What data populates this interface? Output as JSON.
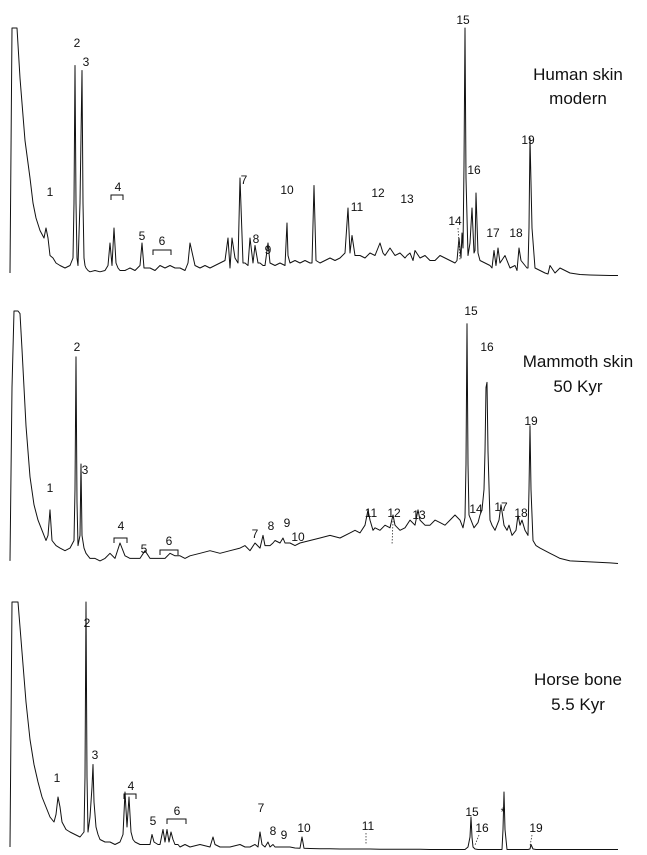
{
  "chart_data": [
    {
      "type": "line",
      "title_lines": [
        "Human skin",
        "modern"
      ],
      "peak_labels": [
        "1",
        "2",
        "3",
        "4",
        "5",
        "6",
        "7",
        "8",
        "9",
        "10",
        "11",
        "12",
        "13",
        "14",
        "15",
        "16",
        "17",
        "18",
        "19"
      ],
      "series": [
        {
          "x": [
            10,
            12,
            14,
            17,
            20,
            25,
            30,
            33,
            36,
            40,
            44,
            46,
            48,
            50,
            53,
            56,
            60,
            65,
            70,
            73,
            74,
            75,
            76,
            77,
            78,
            80,
            82,
            83,
            84,
            85,
            86,
            88,
            90,
            95,
            100,
            105,
            108,
            110,
            112,
            114,
            116,
            118,
            120,
            125,
            130,
            135,
            140,
            142,
            144,
            150,
            155,
            160,
            165,
            170,
            175,
            180,
            185,
            188,
            190,
            195,
            200,
            205,
            210,
            215,
            220,
            225,
            228,
            230,
            232,
            235,
            238,
            240,
            243,
            245,
            248,
            250,
            253,
            255,
            258,
            260,
            263,
            265,
            268,
            270,
            275,
            280,
            285,
            287,
            288,
            290,
            295,
            300,
            305,
            310,
            312,
            314,
            316,
            320,
            325,
            330,
            335,
            340,
            345,
            348,
            350,
            352,
            355,
            360,
            365,
            370,
            375,
            378,
            380,
            383,
            385,
            390,
            395,
            400,
            405,
            407,
            410,
            413,
            415,
            420,
            425,
            430,
            435,
            440,
            445,
            450,
            455,
            457,
            459,
            461,
            462,
            463,
            464,
            465,
            466,
            468,
            470,
            472,
            474,
            475,
            476,
            478,
            480,
            485,
            490,
            492,
            494,
            496,
            498,
            500,
            505,
            510,
            515,
            517,
            519,
            521,
            525,
            527,
            528,
            529,
            530,
            532,
            535,
            540,
            545,
            548,
            550,
            555,
            560,
            570,
            580,
            590,
            600,
            610,
            615,
            618
          ],
          "y": [
            2.0,
            100.0,
            100.0,
            100.0,
            80.0,
            55.0,
            40.0,
            30.0,
            24.0,
            19.0,
            16.0,
            20.0,
            16.0,
            9.0,
            8.0,
            6.0,
            5.0,
            4.0,
            5.0,
            8.0,
            30.0,
            85.0,
            30.0,
            8.0,
            5.0,
            30.0,
            83.0,
            30.0,
            8.0,
            5.0,
            4.0,
            3.0,
            2.5,
            3.0,
            2.5,
            3.0,
            5.0,
            14.0,
            5.0,
            20.0,
            6.0,
            4.0,
            3.0,
            3.0,
            4.0,
            3.0,
            5.0,
            14.0,
            4.0,
            4.0,
            3.0,
            5.0,
            4.0,
            5.0,
            4.0,
            4.0,
            3.0,
            6.0,
            14.0,
            5.0,
            4.0,
            5.0,
            4.0,
            5.0,
            6.0,
            7.0,
            16.0,
            4.0,
            16.0,
            8.0,
            6.0,
            40.0,
            6.0,
            6.0,
            5.0,
            16.0,
            6.0,
            13.0,
            6.0,
            6.0,
            5.0,
            5.0,
            14.0,
            6.0,
            5.0,
            6.0,
            5.0,
            22.0,
            9.0,
            6.0,
            7.0,
            6.0,
            7.0,
            6.0,
            6.0,
            37.0,
            7.0,
            6.0,
            7.0,
            8.0,
            7.0,
            8.0,
            10.0,
            28.0,
            10.0,
            17.0,
            9.0,
            9.0,
            8.0,
            10.0,
            9.0,
            12.0,
            14.0,
            10.0,
            9.0,
            12.0,
            9.0,
            10.0,
            8.0,
            9.0,
            10.0,
            7.0,
            11.0,
            8.0,
            9.0,
            7.0,
            7.0,
            9.0,
            8.0,
            7.0,
            6.0,
            7.0,
            16.0,
            8.0,
            18.0,
            12.0,
            45.0,
            100.0,
            40.0,
            9.0,
            14.0,
            28.0,
            10.0,
            11.0,
            34.0,
            10.0,
            7.0,
            6.0,
            5.0,
            4.0,
            11.0,
            5.0,
            12.0,
            6.0,
            9.0,
            4.0,
            5.0,
            3.0,
            12.0,
            7.0,
            5.0,
            4.0,
            4.0,
            20.0,
            56.0,
            20.0,
            4.0,
            3.0,
            2.0,
            1.6,
            5.0,
            2.0,
            4.0,
            2.0,
            1.4,
            1.2,
            1.1,
            1.0,
            1.0,
            1.0
          ]
        }
      ]
    },
    {
      "type": "line",
      "title_lines": [
        "Mammoth skin",
        "50 Kyr"
      ],
      "peak_labels": [
        "1",
        "2",
        "3",
        "4",
        "5",
        "6",
        "7",
        "8",
        "9",
        "10",
        "11",
        "12",
        "13",
        "14",
        "15",
        "16",
        "17",
        "18",
        "19"
      ],
      "series": [
        {
          "x": [
            10,
            12,
            14,
            16,
            18,
            20,
            22,
            24,
            26,
            30,
            34,
            38,
            42,
            46,
            48,
            50,
            52,
            56,
            60,
            65,
            70,
            74,
            75,
            76,
            77,
            78,
            80,
            81,
            82,
            84,
            86,
            90,
            95,
            100,
            105,
            110,
            115,
            120,
            125,
            130,
            135,
            140,
            145,
            150,
            155,
            160,
            165,
            170,
            175,
            180,
            185,
            190,
            200,
            210,
            220,
            230,
            240,
            245,
            250,
            255,
            260,
            263,
            265,
            270,
            273,
            275,
            280,
            283,
            285,
            290,
            295,
            300,
            310,
            320,
            330,
            340,
            350,
            355,
            360,
            365,
            368,
            370,
            373,
            375,
            380,
            385,
            390,
            393,
            395,
            400,
            405,
            410,
            415,
            418,
            420,
            425,
            430,
            435,
            440,
            445,
            450,
            455,
            460,
            463,
            465,
            466,
            467,
            468,
            469,
            471,
            474,
            476,
            478,
            480,
            482,
            484,
            485,
            486,
            487,
            488,
            490,
            492,
            495,
            497,
            499,
            501,
            504,
            507,
            509,
            512,
            516,
            518,
            520,
            522,
            525,
            528,
            529,
            530,
            531,
            533,
            536,
            540,
            545,
            550,
            555,
            560,
            570,
            580,
            590,
            600,
            610,
            618
          ],
          "y": [
            2.0,
            70.0,
            100.0,
            100.0,
            100.0,
            99.0,
            85.0,
            70.0,
            55.0,
            35.0,
            24.0,
            18.0,
            14.0,
            10.0,
            12.0,
            22.0,
            10.0,
            8.0,
            7.0,
            6.0,
            7.0,
            10.0,
            30.0,
            82.0,
            25.0,
            8.0,
            12.0,
            40.0,
            12.0,
            7.0,
            5.0,
            3.0,
            3.0,
            2.0,
            3.0,
            5.0,
            3.0,
            9.0,
            4.0,
            3.0,
            3.0,
            3.0,
            6.0,
            3.0,
            3.0,
            3.0,
            3.0,
            5.0,
            4.0,
            4.0,
            3.0,
            4.0,
            5.0,
            6.0,
            5.0,
            6.0,
            7.0,
            8.0,
            6.0,
            9.0,
            7.0,
            12.0,
            8.0,
            8.0,
            9.0,
            10.0,
            9.0,
            11.0,
            9.0,
            9.0,
            8.0,
            9.0,
            10.0,
            11.0,
            12.0,
            11.0,
            13.0,
            14.0,
            13.0,
            16.0,
            22.0,
            18.0,
            14.0,
            15.0,
            14.0,
            16.0,
            15.0,
            20.0,
            16.0,
            14.0,
            15.0,
            18.0,
            16.0,
            22.0,
            18.0,
            16.0,
            16.0,
            18.0,
            17.0,
            16.0,
            18.0,
            20.0,
            18.0,
            15.0,
            19.0,
            40.0,
            95.0,
            40.0,
            20.0,
            18.0,
            15.0,
            16.0,
            17.0,
            20.0,
            22.0,
            30.0,
            45.0,
            70.0,
            72.0,
            45.0,
            18.0,
            16.0,
            14.0,
            16.0,
            18.0,
            24.0,
            16.0,
            14.0,
            16.0,
            12.0,
            14.0,
            20.0,
            16.0,
            18.0,
            14.0,
            12.0,
            30.0,
            55.0,
            30.0,
            10.0,
            8.0,
            7.0,
            6.0,
            5.0,
            4.0,
            3.0,
            2.0,
            1.8,
            1.6,
            1.4,
            1.2,
            1.0
          ]
        }
      ]
    },
    {
      "type": "line",
      "title_lines": [
        "Horse bone",
        "5.5 Kyr"
      ],
      "peak_labels": [
        "1",
        "2",
        "3",
        "4",
        "5",
        "6",
        "7",
        "8",
        "9",
        "10",
        "11",
        "15",
        "16",
        "*",
        "19"
      ],
      "series": [
        {
          "x": [
            10,
            12,
            14,
            18,
            22,
            26,
            30,
            34,
            38,
            42,
            46,
            50,
            54,
            56,
            58,
            60,
            62,
            66,
            70,
            75,
            80,
            84,
            85,
            86,
            87,
            88,
            90,
            92,
            93,
            94,
            96,
            98,
            100,
            105,
            110,
            115,
            120,
            123,
            125,
            127,
            129,
            131,
            133,
            135,
            140,
            145,
            150,
            152,
            154,
            158,
            160,
            163,
            165,
            167,
            169,
            171,
            173,
            175,
            178,
            180,
            185,
            190,
            200,
            210,
            213,
            215,
            220,
            230,
            240,
            245,
            250,
            255,
            258,
            260,
            262,
            265,
            268,
            270,
            273,
            275,
            280,
            285,
            290,
            295,
            300,
            302,
            304,
            310,
            320,
            330,
            340,
            350,
            360,
            370,
            380,
            390,
            400,
            410,
            420,
            430,
            440,
            450,
            460,
            465,
            468,
            470,
            471,
            472,
            473,
            475,
            478,
            480,
            485,
            490,
            495,
            500,
            502,
            503,
            504,
            505,
            507,
            510,
            515,
            520,
            525,
            528,
            530,
            531,
            533,
            536,
            540,
            545,
            550,
            560,
            570,
            580,
            590,
            600,
            610,
            618
          ],
          "y": [
            2.0,
            100.0,
            100.0,
            100.0,
            80.0,
            60.0,
            45.0,
            35.0,
            28.0,
            22.0,
            18.0,
            14.0,
            12.0,
            15.0,
            22.0,
            18.0,
            12.0,
            9.0,
            8.0,
            7.0,
            6.0,
            8.0,
            30.0,
            100.0,
            30.0,
            8.0,
            14.0,
            26.0,
            35.0,
            20.0,
            10.0,
            7.0,
            5.0,
            4.0,
            4.0,
            3.0,
            4.0,
            7.0,
            24.0,
            10.0,
            22.0,
            8.0,
            5.0,
            4.0,
            3.0,
            3.0,
            3.0,
            7.0,
            4.0,
            3.0,
            3.0,
            9.0,
            4.0,
            9.0,
            4.0,
            8.0,
            5.0,
            3.0,
            3.0,
            2.0,
            3.0,
            2.0,
            3.0,
            2.0,
            6.0,
            3.0,
            2.0,
            2.0,
            3.0,
            2.0,
            2.0,
            3.0,
            2.0,
            8.0,
            3.0,
            2.0,
            4.0,
            2.0,
            3.0,
            2.0,
            2.0,
            2.0,
            2.0,
            1.6,
            1.5,
            6.0,
            1.5,
            1.4,
            1.3,
            1.3,
            1.2,
            1.2,
            1.2,
            1.2,
            1.1,
            1.1,
            1.1,
            1.1,
            1.1,
            1.0,
            1.0,
            1.0,
            1.0,
            1.0,
            2.0,
            6.0,
            14.0,
            6.0,
            2.0,
            1.2,
            1.0,
            1.0,
            1.0,
            1.0,
            1.0,
            1.0,
            1.0,
            9.0,
            24.0,
            9.0,
            1.0,
            1.0,
            1.0,
            1.0,
            1.0,
            1.0,
            1.2,
            3.0,
            1.2,
            1.0,
            1.0,
            1.0,
            1.0,
            1.0,
            1.0,
            1.0,
            1.0,
            1.0,
            1.0,
            1.0
          ]
        }
      ]
    }
  ]
}
